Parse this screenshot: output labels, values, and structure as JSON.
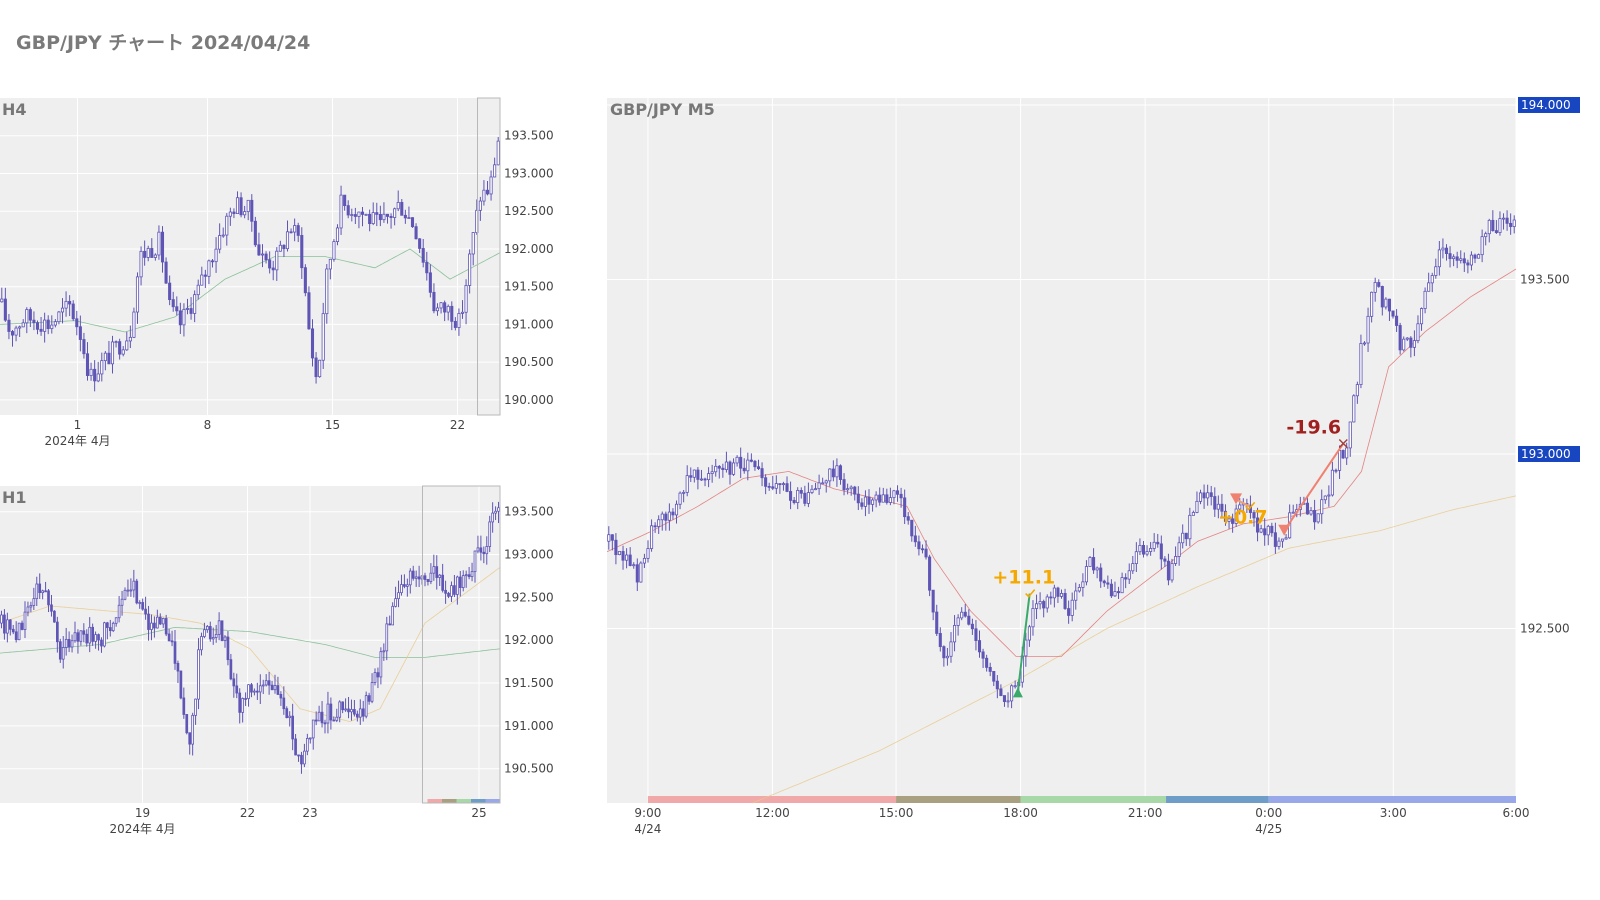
{
  "title": "GBP/JPY チャート 2024/04/24",
  "colors": {
    "candle": "#5e55b5",
    "panel_bg": "#efefef",
    "grid": "#ffffff",
    "ma_short": "#e07070",
    "ma_mid": "#e8c98a",
    "ma_long": "#78b88a",
    "badge": "#1846c0",
    "trade_win": "#f5a800",
    "trade_loss": "#a02020",
    "entry_long": "#3aaa6a",
    "entry_short": "#f08070"
  },
  "chart_data": [
    {
      "id": "h4",
      "type": "candlestick",
      "label": "H4",
      "xticks": [
        {
          "label": "1",
          "sub": "2024年 4月",
          "pos": 0.155
        },
        {
          "label": "8",
          "sub": "",
          "pos": 0.415
        },
        {
          "label": "15",
          "sub": "",
          "pos": 0.665
        },
        {
          "label": "22",
          "sub": "",
          "pos": 0.915
        }
      ],
      "yticks": [
        "193.500",
        "193.000",
        "192.500",
        "192.000",
        "191.500",
        "191.000",
        "190.500",
        "190.000"
      ],
      "ylim": [
        189.8,
        194.0
      ],
      "price_path": [
        [
          0.0,
          191.3
        ],
        [
          0.02,
          190.9
        ],
        [
          0.05,
          191.1
        ],
        [
          0.1,
          191.0
        ],
        [
          0.14,
          191.25
        ],
        [
          0.16,
          190.9
        ],
        [
          0.18,
          190.3
        ],
        [
          0.22,
          190.6
        ],
        [
          0.26,
          190.9
        ],
        [
          0.28,
          191.9
        ],
        [
          0.32,
          192.1
        ],
        [
          0.34,
          191.2
        ],
        [
          0.36,
          191.0
        ],
        [
          0.4,
          191.5
        ],
        [
          0.44,
          192.2
        ],
        [
          0.47,
          192.6
        ],
        [
          0.5,
          192.5
        ],
        [
          0.52,
          191.9
        ],
        [
          0.55,
          191.8
        ],
        [
          0.58,
          192.3
        ],
        [
          0.6,
          192.1
        ],
        [
          0.62,
          190.8
        ],
        [
          0.635,
          190.2
        ],
        [
          0.65,
          191.5
        ],
        [
          0.68,
          192.6
        ],
        [
          0.72,
          192.5
        ],
        [
          0.76,
          192.3
        ],
        [
          0.8,
          192.6
        ],
        [
          0.83,
          192.3
        ],
        [
          0.85,
          191.8
        ],
        [
          0.87,
          191.2
        ],
        [
          0.9,
          191.2
        ],
        [
          0.92,
          191.0
        ],
        [
          0.94,
          191.9
        ],
        [
          0.96,
          192.7
        ],
        [
          0.98,
          192.8
        ],
        [
          1.0,
          193.6
        ]
      ],
      "ma_path": [
        [
          0.0,
          191.0
        ],
        [
          0.15,
          191.05
        ],
        [
          0.25,
          190.9
        ],
        [
          0.35,
          191.1
        ],
        [
          0.45,
          191.6
        ],
        [
          0.55,
          191.9
        ],
        [
          0.65,
          191.9
        ],
        [
          0.75,
          191.75
        ],
        [
          0.82,
          192.0
        ],
        [
          0.9,
          191.6
        ],
        [
          1.0,
          191.95
        ]
      ],
      "highlight": {
        "x0": 0.955,
        "x1": 1.0
      }
    },
    {
      "id": "h1",
      "type": "candlestick",
      "label": "H1",
      "xticks": [
        {
          "label": "19",
          "sub": "2024年 4月",
          "pos": 0.285
        },
        {
          "label": "22",
          "sub": "",
          "pos": 0.495
        },
        {
          "label": "23",
          "sub": "",
          "pos": 0.62
        },
        {
          "label": "25",
          "sub": "",
          "pos": 0.958
        }
      ],
      "yticks": [
        "193.500",
        "193.000",
        "192.500",
        "192.000",
        "191.500",
        "191.000",
        "190.500"
      ],
      "ylim": [
        190.1,
        193.8
      ],
      "price_path": [
        [
          0.0,
          192.2
        ],
        [
          0.04,
          192.1
        ],
        [
          0.07,
          192.6
        ],
        [
          0.1,
          192.5
        ],
        [
          0.12,
          191.8
        ],
        [
          0.15,
          192.1
        ],
        [
          0.2,
          192.0
        ],
        [
          0.24,
          192.4
        ],
        [
          0.27,
          192.6
        ],
        [
          0.3,
          192.2
        ],
        [
          0.34,
          192.1
        ],
        [
          0.36,
          191.4
        ],
        [
          0.38,
          190.7
        ],
        [
          0.4,
          192.0
        ],
        [
          0.44,
          192.2
        ],
        [
          0.46,
          191.7
        ],
        [
          0.48,
          191.2
        ],
        [
          0.5,
          191.4
        ],
        [
          0.55,
          191.5
        ],
        [
          0.58,
          191.0
        ],
        [
          0.6,
          190.6
        ],
        [
          0.63,
          191.1
        ],
        [
          0.68,
          191.2
        ],
        [
          0.72,
          191.1
        ],
        [
          0.75,
          191.5
        ],
        [
          0.78,
          192.3
        ],
        [
          0.8,
          192.7
        ],
        [
          0.84,
          192.75
        ],
        [
          0.87,
          192.8
        ],
        [
          0.9,
          192.5
        ],
        [
          0.93,
          192.8
        ],
        [
          0.96,
          193.0
        ],
        [
          1.0,
          193.6
        ]
      ],
      "ma_path": [
        [
          0.0,
          191.85
        ],
        [
          0.2,
          191.95
        ],
        [
          0.35,
          192.15
        ],
        [
          0.5,
          192.1
        ],
        [
          0.65,
          191.95
        ],
        [
          0.75,
          191.8
        ],
        [
          0.85,
          191.8
        ],
        [
          1.0,
          191.9
        ]
      ],
      "ma2_path": [
        [
          0.0,
          192.2
        ],
        [
          0.1,
          192.4
        ],
        [
          0.2,
          192.35
        ],
        [
          0.3,
          192.3
        ],
        [
          0.4,
          192.2
        ],
        [
          0.5,
          191.9
        ],
        [
          0.6,
          191.2
        ],
        [
          0.7,
          191.05
        ],
        [
          0.76,
          191.2
        ],
        [
          0.85,
          192.2
        ],
        [
          1.0,
          192.85
        ]
      ],
      "highlight": {
        "x0": 0.845,
        "x1": 1.0
      }
    },
    {
      "id": "m5",
      "type": "candlestick",
      "label": "GBP/JPY M5",
      "xticks": [
        {
          "label": "9:00",
          "sub": "4/24",
          "pos": 0.045
        },
        {
          "label": "12:00",
          "sub": "",
          "pos": 0.182
        },
        {
          "label": "15:00",
          "sub": "",
          "pos": 0.318
        },
        {
          "label": "18:00",
          "sub": "",
          "pos": 0.455
        },
        {
          "label": "21:00",
          "sub": "",
          "pos": 0.592
        },
        {
          "label": "0:00",
          "sub": "4/25",
          "pos": 0.728
        },
        {
          "label": "3:00",
          "sub": "",
          "pos": 0.865
        },
        {
          "label": "6:00",
          "sub": "",
          "pos": 1.0
        }
      ],
      "yticks": [
        "193.500",
        "192.500"
      ],
      "badges": [
        "194.000",
        "193.000"
      ],
      "ylim": [
        192.0,
        194.02
      ],
      "price_path": [
        [
          0.0,
          192.75
        ],
        [
          0.02,
          192.7
        ],
        [
          0.035,
          192.65
        ],
        [
          0.05,
          192.78
        ],
        [
          0.07,
          192.82
        ],
        [
          0.09,
          192.95
        ],
        [
          0.13,
          192.95
        ],
        [
          0.15,
          192.98
        ],
        [
          0.18,
          192.9
        ],
        [
          0.22,
          192.87
        ],
        [
          0.25,
          192.95
        ],
        [
          0.27,
          192.88
        ],
        [
          0.29,
          192.85
        ],
        [
          0.31,
          192.87
        ],
        [
          0.32,
          192.9
        ],
        [
          0.33,
          192.8
        ],
        [
          0.35,
          192.7
        ],
        [
          0.37,
          192.4
        ],
        [
          0.39,
          192.55
        ],
        [
          0.41,
          192.45
        ],
        [
          0.43,
          192.3
        ],
        [
          0.45,
          192.32
        ],
        [
          0.47,
          192.55
        ],
        [
          0.49,
          192.6
        ],
        [
          0.51,
          192.55
        ],
        [
          0.53,
          192.7
        ],
        [
          0.56,
          192.6
        ],
        [
          0.58,
          192.7
        ],
        [
          0.6,
          192.75
        ],
        [
          0.62,
          192.65
        ],
        [
          0.64,
          192.8
        ],
        [
          0.66,
          192.9
        ],
        [
          0.68,
          192.8
        ],
        [
          0.7,
          192.85
        ],
        [
          0.72,
          192.78
        ],
        [
          0.74,
          192.75
        ],
        [
          0.76,
          192.85
        ],
        [
          0.78,
          192.8
        ],
        [
          0.8,
          192.95
        ],
        [
          0.815,
          193.05
        ],
        [
          0.83,
          193.3
        ],
        [
          0.845,
          193.5
        ],
        [
          0.86,
          193.4
        ],
        [
          0.875,
          193.3
        ],
        [
          0.89,
          193.35
        ],
        [
          0.91,
          193.55
        ],
        [
          0.93,
          193.58
        ],
        [
          0.95,
          193.55
        ],
        [
          0.97,
          193.65
        ],
        [
          1.0,
          193.66
        ]
      ],
      "ma_short_path": [
        [
          0.0,
          192.72
        ],
        [
          0.05,
          192.78
        ],
        [
          0.1,
          192.85
        ],
        [
          0.15,
          192.93
        ],
        [
          0.2,
          192.95
        ],
        [
          0.25,
          192.9
        ],
        [
          0.3,
          192.87
        ],
        [
          0.33,
          192.85
        ],
        [
          0.36,
          192.7
        ],
        [
          0.4,
          192.55
        ],
        [
          0.45,
          192.42
        ],
        [
          0.5,
          192.42
        ],
        [
          0.55,
          192.55
        ],
        [
          0.6,
          192.65
        ],
        [
          0.65,
          192.75
        ],
        [
          0.7,
          192.8
        ],
        [
          0.75,
          192.82
        ],
        [
          0.8,
          192.85
        ],
        [
          0.83,
          192.95
        ],
        [
          0.86,
          193.25
        ],
        [
          0.9,
          193.35
        ],
        [
          0.95,
          193.45
        ],
        [
          1.0,
          193.53
        ]
      ],
      "ma_mid_path": [
        [
          0.16,
          192.0
        ],
        [
          0.3,
          192.15
        ],
        [
          0.45,
          192.35
        ],
        [
          0.55,
          192.5
        ],
        [
          0.65,
          192.62
        ],
        [
          0.75,
          192.73
        ],
        [
          0.85,
          192.78
        ],
        [
          0.93,
          192.84
        ],
        [
          1.0,
          192.88
        ]
      ],
      "trades": [
        {
          "pnl": "+11.1",
          "kind": "win",
          "entry": [
            0.452,
            192.32
          ],
          "exit": [
            0.465,
            192.6
          ]
        },
        {
          "pnl": "+0.7",
          "kind": "win",
          "entry": [
            0.692,
            192.87
          ],
          "exit": [
            0.707,
            192.85
          ]
        },
        {
          "pnl": "-19.6",
          "kind": "loss",
          "entry": [
            0.745,
            192.78
          ],
          "exit": [
            0.81,
            193.03
          ]
        }
      ],
      "session_colors": [
        "#f0a8a8",
        "#a8a080",
        "#a8d8a8",
        "#6e9ec8",
        "#98a8e8"
      ],
      "sessions": [
        [
          0.045,
          0.318
        ],
        [
          0.318,
          0.455
        ],
        [
          0.455,
          0.615
        ],
        [
          0.615,
          0.728
        ],
        [
          0.728,
          1.0
        ]
      ]
    }
  ]
}
